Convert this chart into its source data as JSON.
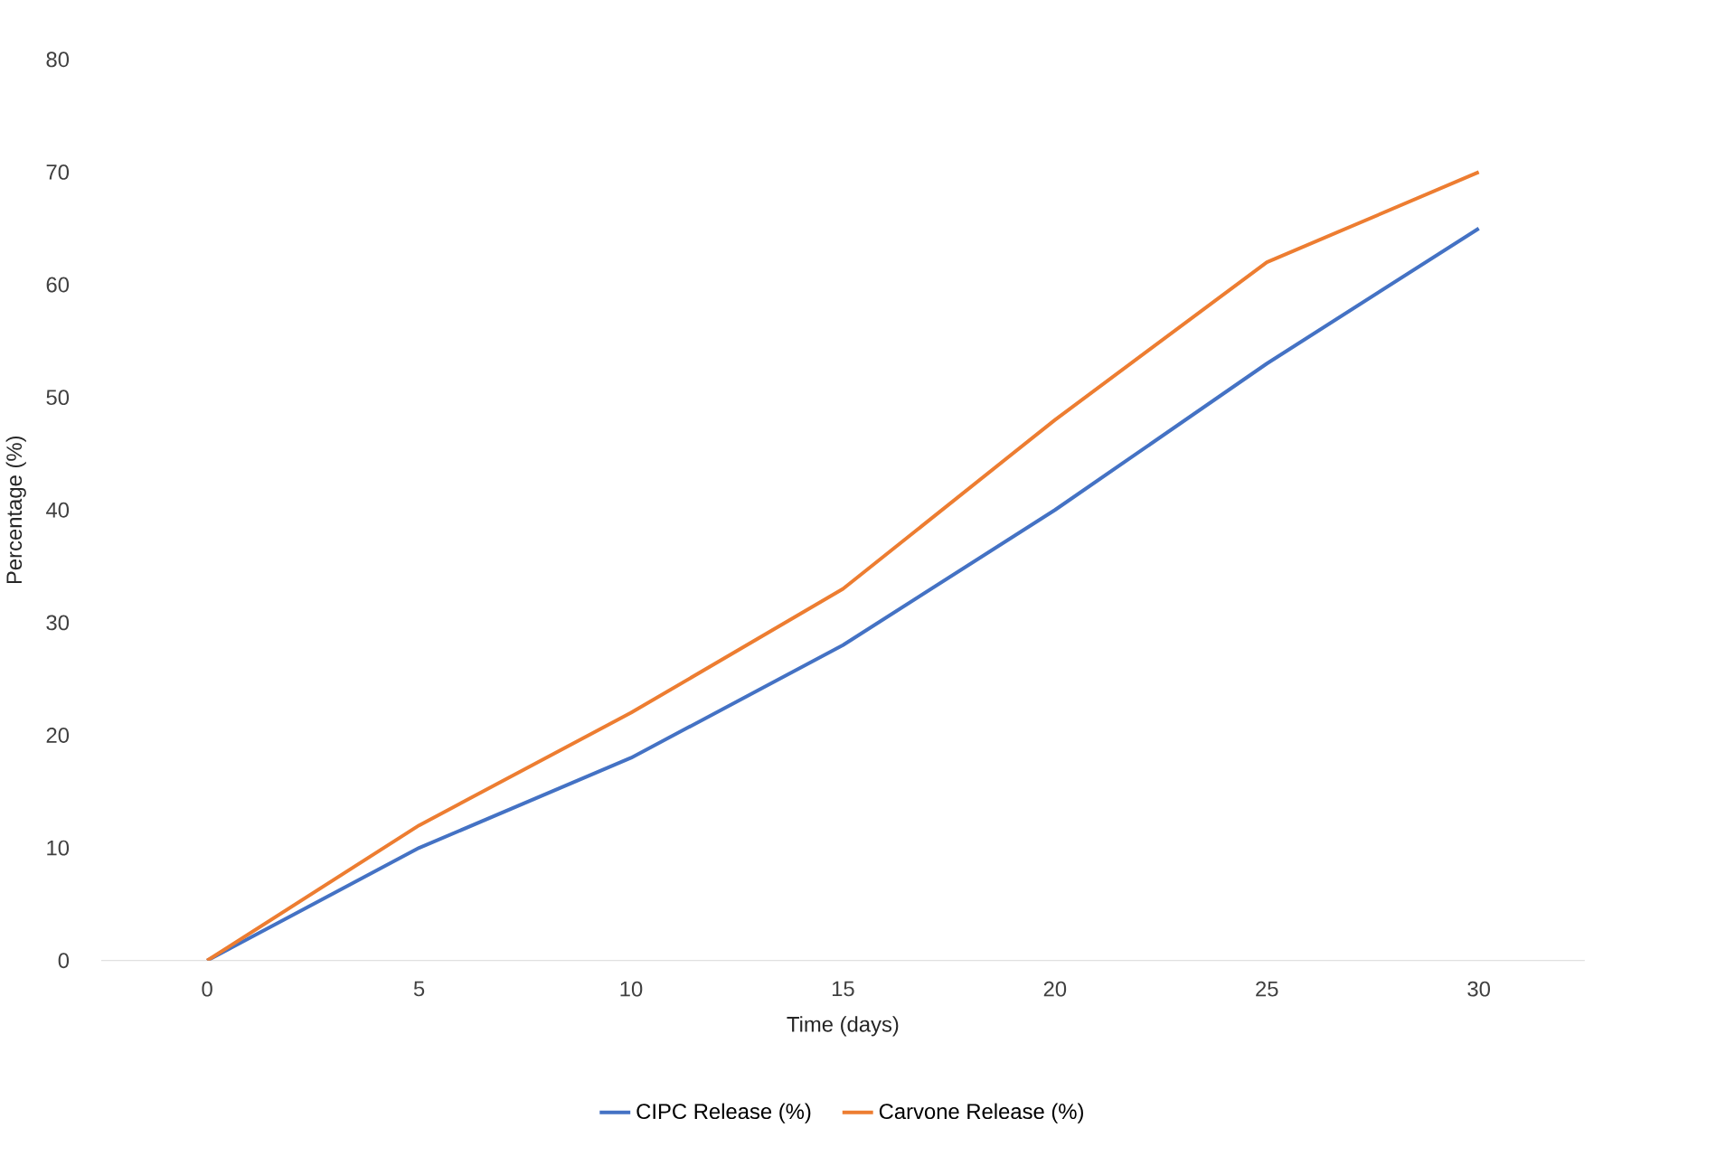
{
  "chart_data": {
    "type": "line",
    "xlabel": "Time (days)",
    "ylabel": "Percentage (%)",
    "categories": [
      "0",
      "5",
      "10",
      "15",
      "20",
      "25",
      "30"
    ],
    "series": [
      {
        "name": "CIPC Release (%)",
        "color": "#4472c4",
        "values": [
          0,
          10,
          18,
          28,
          40,
          53,
          65
        ]
      },
      {
        "name": "Carvone Release (%)",
        "color": "#ed7d31",
        "values": [
          0,
          12,
          22,
          33,
          48,
          62,
          70
        ]
      }
    ],
    "ylim": [
      0,
      80
    ],
    "yticks": [
      0,
      10,
      20,
      30,
      40,
      50,
      60,
      70,
      80
    ],
    "legend": "bottom"
  }
}
